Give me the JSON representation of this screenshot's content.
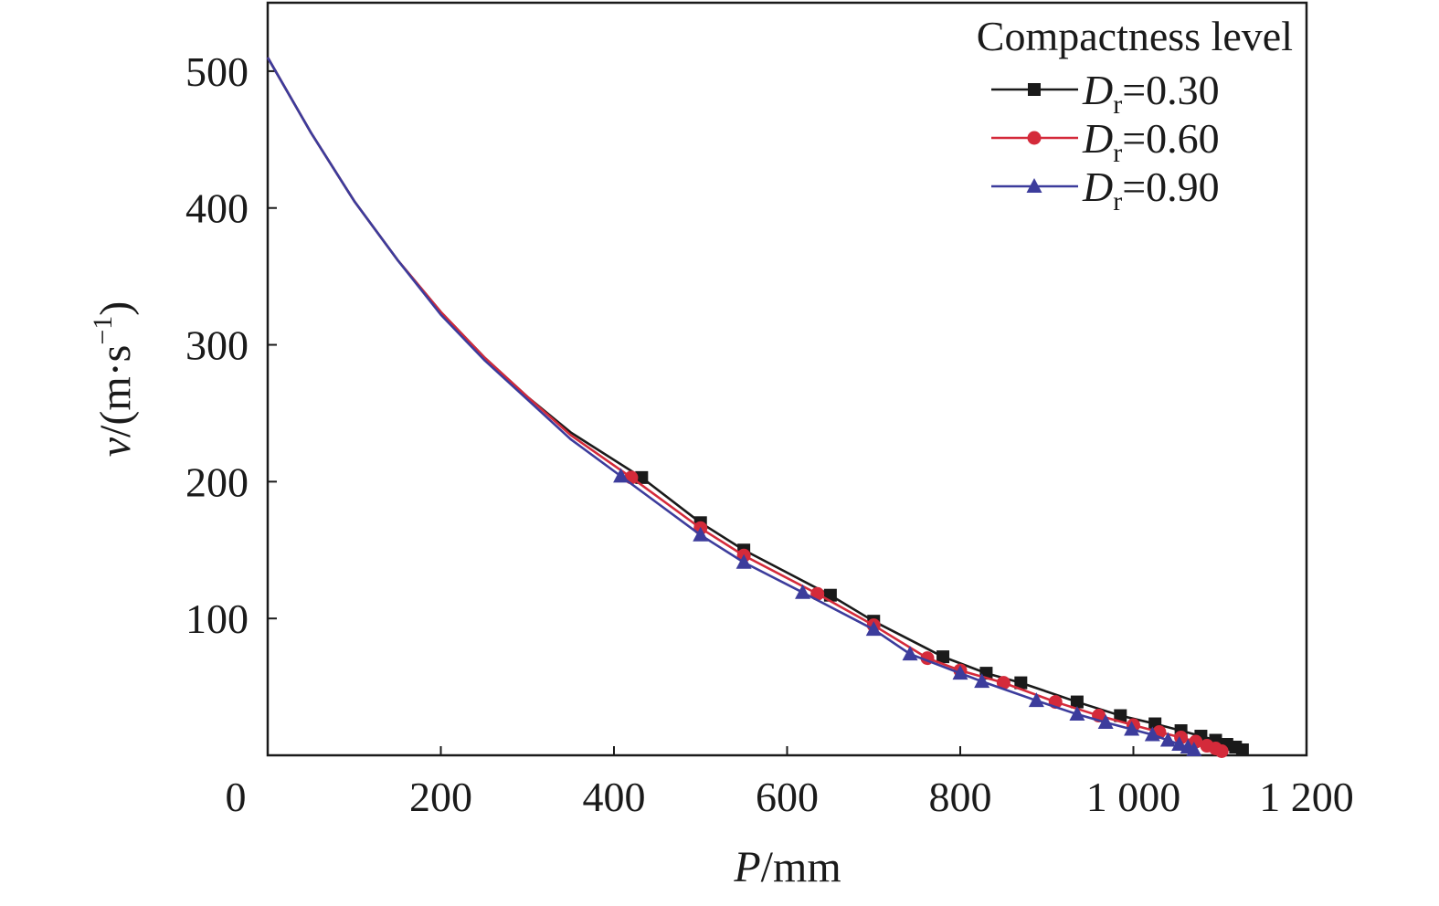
{
  "chart_data": {
    "type": "line",
    "x_axis": {
      "label_var": "P",
      "label_unit": "/mm",
      "range": [
        0,
        1200
      ],
      "ticks": [
        0,
        200,
        400,
        600,
        800,
        1000,
        1200
      ],
      "tick_labels": [
        "0",
        "200",
        "400",
        "600",
        "800",
        "1 000",
        "1 200"
      ]
    },
    "y_axis": {
      "label_var": "v",
      "label_unit_open": "/(m·s",
      "label_unit_exp": "−1",
      "label_unit_close": ")",
      "range": [
        0,
        550
      ],
      "ticks": [
        100,
        200,
        300,
        400,
        500
      ],
      "tick_labels": [
        "100",
        "200",
        "300",
        "400",
        "500"
      ]
    },
    "legend": {
      "title": "Compactness level",
      "placement": "top-right"
    },
    "series": [
      {
        "name_var": "D",
        "name_sub": "r",
        "name_value": "=0.30",
        "color": "#1a1a1a",
        "marker": "square",
        "x": [
          0,
          50,
          100,
          150,
          200,
          250,
          300,
          350,
          432,
          500,
          550,
          650,
          700,
          780,
          830,
          870,
          935,
          985,
          1025,
          1055,
          1078,
          1095,
          1108,
          1118,
          1126
        ],
        "y": [
          510,
          455,
          405,
          362,
          324,
          291,
          262,
          236,
          203,
          170,
          150,
          117,
          98,
          72,
          60,
          53,
          39,
          29,
          23,
          18,
          14,
          11,
          8,
          6,
          4
        ]
      },
      {
        "name_var": "D",
        "name_sub": "r",
        "name_value": "=0.60",
        "color": "#d42a3a",
        "marker": "circle",
        "x": [
          0,
          50,
          100,
          150,
          200,
          250,
          300,
          350,
          420,
          500,
          550,
          635,
          700,
          762,
          800,
          850,
          910,
          960,
          1000,
          1030,
          1055,
          1072,
          1085,
          1095,
          1102
        ],
        "y": [
          510,
          455,
          405,
          362,
          324,
          291,
          262,
          234,
          203,
          166,
          146,
          118,
          95,
          71,
          62,
          53,
          39,
          29,
          22,
          17,
          13,
          10,
          7,
          5,
          3
        ]
      },
      {
        "name_var": "D",
        "name_sub": "r",
        "name_value": "=0.90",
        "color": "#3c3c9c",
        "marker": "triangle",
        "x": [
          0,
          50,
          100,
          150,
          200,
          250,
          300,
          350,
          408,
          500,
          550,
          618,
          700,
          742,
          800,
          825,
          888,
          935,
          968,
          998,
          1022,
          1040,
          1053,
          1063,
          1070
        ],
        "y": [
          510,
          455,
          405,
          362,
          322,
          289,
          260,
          231,
          204,
          161,
          141,
          119,
          92,
          74,
          60,
          54,
          40,
          30,
          24,
          19,
          15,
          11,
          8,
          6,
          4
        ]
      }
    ]
  }
}
